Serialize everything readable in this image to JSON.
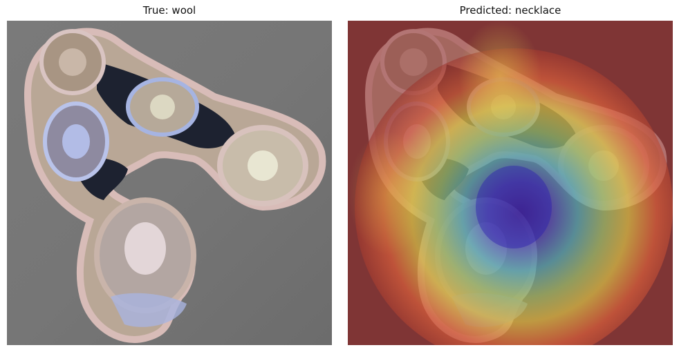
{
  "panels": [
    {
      "title": "True: wool",
      "image": "crochet-scarf-photo"
    },
    {
      "title": "Predicted: necklace",
      "image": "crochet-scarf-gradcam-heatmap-overlay"
    }
  ]
}
